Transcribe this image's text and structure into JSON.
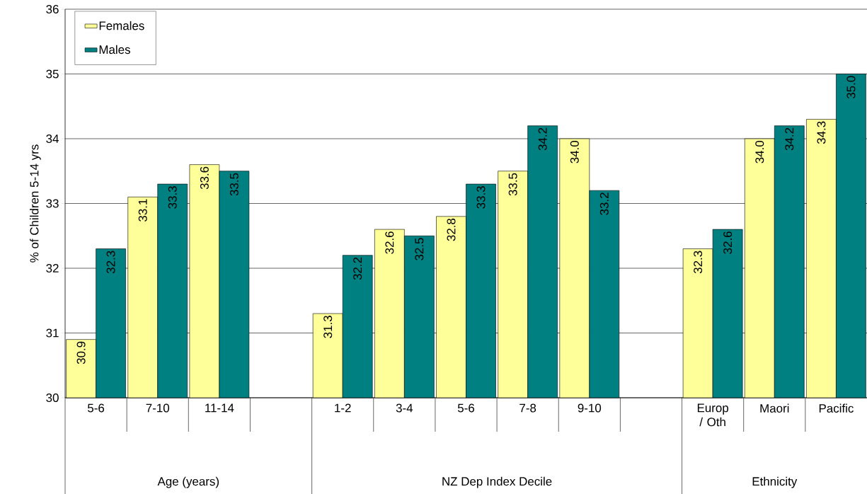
{
  "chart_data": {
    "type": "bar",
    "ylabel": "% of Children 5-14 yrs",
    "categories": [
      "5-6",
      "7-10",
      "11-14",
      null,
      "1-2",
      "3-4",
      "5-6",
      "7-8",
      "9-10",
      null,
      "Europ / Oth",
      "Maori",
      "Pacific"
    ],
    "series": [
      {
        "name": "Females",
        "color": "#ffff99",
        "values": [
          30.9,
          33.1,
          33.6,
          null,
          31.3,
          32.6,
          32.8,
          33.5,
          34.0,
          null,
          32.3,
          34.0,
          34.3
        ],
        "value_labels": [
          "30.9",
          "33.1",
          "33.6",
          null,
          "31.3",
          "32.6",
          "32.8",
          "33.5",
          "34.0",
          null,
          "32.3",
          "34.0",
          "34.3"
        ]
      },
      {
        "name": "Males",
        "color": "#008080",
        "values": [
          32.3,
          33.3,
          33.5,
          null,
          32.2,
          32.5,
          33.3,
          34.2,
          33.2,
          null,
          32.6,
          34.2,
          35.0
        ],
        "value_labels": [
          "32.3",
          "33.3",
          "33.5",
          null,
          "32.2",
          "32.5",
          "33.3",
          "34.2",
          "33.2",
          null,
          "32.6",
          "34.2",
          "35.0"
        ]
      }
    ],
    "annotations": [
      "Age (years)",
      "NZ Dep Index Decile",
      "Ethnicity"
    ],
    "ylim": [
      30,
      36
    ],
    "yticks": [
      30,
      31,
      32,
      33,
      34,
      35,
      36
    ],
    "grid": "y",
    "legend": "top left"
  }
}
